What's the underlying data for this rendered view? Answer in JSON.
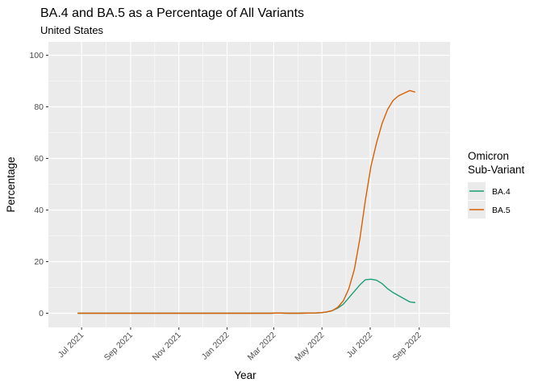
{
  "chart_data": {
    "type": "line",
    "title": "BA.4 and BA.5 as a Percentage of All Variants",
    "subtitle": "United States",
    "xlabel": "Year",
    "ylabel": "Percentage",
    "ylim": [
      0,
      100
    ],
    "xlim": [
      "2021-05-20",
      "2022-10-10"
    ],
    "y_ticks": [
      0,
      20,
      40,
      60,
      80,
      100
    ],
    "x_ticks": [
      {
        "date": "2021-07-01",
        "label": "Jul 2021"
      },
      {
        "date": "2021-09-01",
        "label": "Sep 2021"
      },
      {
        "date": "2021-11-01",
        "label": "Nov 2021"
      },
      {
        "date": "2022-01-01",
        "label": "Jan 2022"
      },
      {
        "date": "2022-03-01",
        "label": "Mar 2022"
      },
      {
        "date": "2022-05-01",
        "label": "May 2022"
      },
      {
        "date": "2022-07-01",
        "label": "Jul 2022"
      },
      {
        "date": "2022-09-01",
        "label": "Sep 2022"
      }
    ],
    "grid": true,
    "legend": {
      "title_lines": [
        "Omicron",
        "Sub-Variant"
      ],
      "position": "right"
    },
    "series": [
      {
        "name": "BA.4",
        "color": "#1b9e77",
        "points": [
          [
            "2021-06-26",
            0
          ],
          [
            "2021-08-07",
            0
          ],
          [
            "2021-09-18",
            0
          ],
          [
            "2021-10-30",
            0
          ],
          [
            "2021-12-11",
            0
          ],
          [
            "2022-01-22",
            0
          ],
          [
            "2022-02-26",
            0
          ],
          [
            "2022-03-05",
            0.1
          ],
          [
            "2022-03-19",
            0
          ],
          [
            "2022-04-02",
            0
          ],
          [
            "2022-04-16",
            0.1
          ],
          [
            "2022-04-23",
            0.1
          ],
          [
            "2022-04-30",
            0.2
          ],
          [
            "2022-05-07",
            0.5
          ],
          [
            "2022-05-14",
            1
          ],
          [
            "2022-05-21",
            2
          ],
          [
            "2022-05-28",
            3.5
          ],
          [
            "2022-06-04",
            6
          ],
          [
            "2022-06-11",
            8.5
          ],
          [
            "2022-06-18",
            11
          ],
          [
            "2022-06-25",
            13
          ],
          [
            "2022-07-02",
            13.2
          ],
          [
            "2022-07-09",
            12.8
          ],
          [
            "2022-07-16",
            11.5
          ],
          [
            "2022-07-23",
            9.5
          ],
          [
            "2022-07-30",
            8
          ],
          [
            "2022-08-06",
            6.8
          ],
          [
            "2022-08-13",
            5.6
          ],
          [
            "2022-08-20",
            4.4
          ],
          [
            "2022-08-27",
            4.1
          ]
        ]
      },
      {
        "name": "BA.5",
        "color": "#d95f02",
        "points": [
          [
            "2021-06-26",
            0
          ],
          [
            "2021-08-07",
            0
          ],
          [
            "2021-09-18",
            0
          ],
          [
            "2021-10-30",
            0
          ],
          [
            "2021-12-11",
            0
          ],
          [
            "2022-01-22",
            0
          ],
          [
            "2022-02-26",
            0
          ],
          [
            "2022-03-05",
            0.1
          ],
          [
            "2022-03-19",
            0
          ],
          [
            "2022-04-02",
            0
          ],
          [
            "2022-04-16",
            0.1
          ],
          [
            "2022-04-23",
            0.1
          ],
          [
            "2022-04-30",
            0.2
          ],
          [
            "2022-05-07",
            0.5
          ],
          [
            "2022-05-14",
            1
          ],
          [
            "2022-05-21",
            2.3
          ],
          [
            "2022-05-28",
            4.8
          ],
          [
            "2022-06-04",
            9.5
          ],
          [
            "2022-06-11",
            17
          ],
          [
            "2022-06-18",
            29
          ],
          [
            "2022-06-25",
            44
          ],
          [
            "2022-07-02",
            57
          ],
          [
            "2022-07-09",
            66
          ],
          [
            "2022-07-16",
            73.5
          ],
          [
            "2022-07-23",
            79
          ],
          [
            "2022-07-30",
            82.5
          ],
          [
            "2022-08-06",
            84.3
          ],
          [
            "2022-08-13",
            85.3
          ],
          [
            "2022-08-20",
            86.3
          ],
          [
            "2022-08-27",
            85.7
          ]
        ]
      }
    ]
  }
}
